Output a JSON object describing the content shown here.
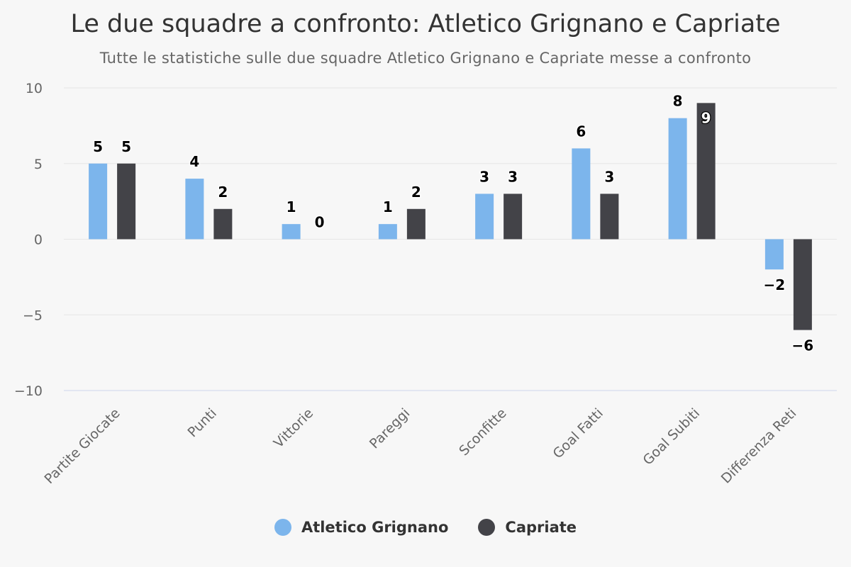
{
  "chart_data": {
    "type": "bar",
    "title": "Le due squadre a confronto: Atletico Grignano e Capriate",
    "subtitle": "Tutte le statistiche sulle due squadre Atletico Grignano e Capriate messe a confronto",
    "categories": [
      "Partite Giocate",
      "Punti",
      "Vittorie",
      "Pareggi",
      "Sconfitte",
      "Goal Fatti",
      "Goal Subiti",
      "Differenza Reti"
    ],
    "series": [
      {
        "name": "Atletico Grignano",
        "color": "#7cb5ec",
        "values": [
          5,
          4,
          1,
          1,
          3,
          6,
          8,
          -2
        ]
      },
      {
        "name": "Capriate",
        "color": "#434348",
        "values": [
          5,
          2,
          0,
          2,
          3,
          3,
          9,
          -6
        ]
      }
    ],
    "ylim": [
      -10,
      10
    ],
    "yticks": [
      10,
      5,
      0,
      -5,
      -10
    ],
    "ytick_labels": [
      "10",
      "5",
      "0",
      "−5",
      "−10"
    ],
    "grid": true,
    "xlabel": "",
    "ylabel": "",
    "legend_position": "bottom-center"
  }
}
